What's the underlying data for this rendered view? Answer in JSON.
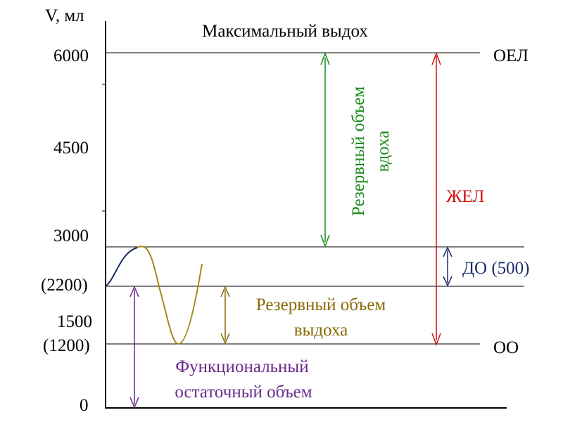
{
  "title": "Максимальный выдох",
  "y_axis": {
    "label": "V, мл",
    "ticks": [
      {
        "key": "v6000",
        "label": "6000"
      },
      {
        "key": "v4500",
        "label": "4500"
      },
      {
        "key": "v3000",
        "label": "3000"
      },
      {
        "key": "v2200",
        "label": "(2200)"
      },
      {
        "key": "v1500",
        "label": "1500"
      },
      {
        "key": "v1200",
        "label": "(1200)"
      },
      {
        "key": "v0",
        "label": "0"
      }
    ]
  },
  "level_labels": {
    "oel": "ОЕЛ",
    "oo": "ОО"
  },
  "annotations": {
    "reserve_inhale_line1": "Резервный объем",
    "reserve_inhale_line2": "вдоха",
    "zhel": "ЖЕЛ",
    "do": "ДО (500)",
    "reserve_exhale_line1": "Резервный объем",
    "reserve_exhale_line2": "выдоха",
    "frc_line1": "Функциональный",
    "frc_line2": "остаточный объем"
  },
  "colors": {
    "axis": "#000000",
    "reserve_inhale": "#1a8a1a",
    "zhel": "#d01010",
    "tidal": "#1c2d6b",
    "reserve_exhale": "#8a6a08",
    "frc": "#6a2a8a",
    "curve": "#a08a1a"
  }
}
